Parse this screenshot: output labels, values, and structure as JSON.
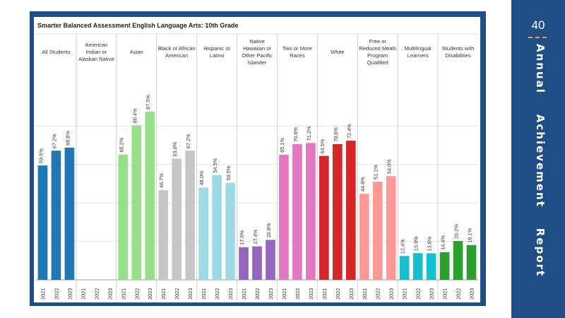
{
  "side_panel": {
    "page_number": "40",
    "report_title": "Annual    Achievement    Report"
  },
  "colors": {
    "frame": "#1f4e87",
    "all_students": "#1f77b4",
    "asian": "#98df8a",
    "black": "#c7c7c7",
    "hispanic": "#9edae5",
    "native_hawaiian": "#9467bd",
    "two_or_more": "#e377c2",
    "white": "#d62728",
    "free_reduced": "#ff9896",
    "multilingual": "#17becf",
    "disabilities": "#2ca02c"
  },
  "chart_data": {
    "type": "bar",
    "title": "Smarter Balanced Assessment English Language Arts:  10th Grade",
    "ylim": [
      0,
      100
    ],
    "grid": true,
    "years": [
      "2021",
      "2022",
      "2023"
    ],
    "groups": [
      {
        "name": "All Students",
        "lines": [
          "All Students"
        ],
        "color_key": "all_students",
        "values": [
          59.5,
          67.2,
          68.8
        ],
        "labels": [
          "59.5%",
          "67.2%",
          "68.8%"
        ]
      },
      {
        "name": "American Indian or Alaskan Native",
        "lines": [
          "American",
          "Indian or",
          "Alaskan Native"
        ],
        "color_key": "all_students",
        "values": [
          null,
          null,
          null
        ],
        "labels": [
          "",
          "",
          ""
        ]
      },
      {
        "name": "Asian",
        "lines": [
          "Asian"
        ],
        "color_key": "asian",
        "values": [
          65.2,
          80.4,
          87.5
        ],
        "labels": [
          "65.2%",
          "80.4%",
          "87.5%"
        ]
      },
      {
        "name": "Black or African American",
        "lines": [
          "Black or African",
          "American"
        ],
        "color_key": "black",
        "values": [
          46.7,
          63.0,
          67.2
        ],
        "labels": [
          "46.7%",
          "63.0%",
          "67.2%"
        ]
      },
      {
        "name": "Hispanic or Latino",
        "lines": [
          "Hispanic or",
          "Latino"
        ],
        "color_key": "hispanic",
        "values": [
          48.0,
          54.5,
          50.5
        ],
        "labels": [
          "48.0%",
          "54.5%",
          "50.5%"
        ]
      },
      {
        "name": "Native Hawaiian or Other Pacific Islander",
        "lines": [
          "Native",
          "Hawaiian or",
          "Other Pacific",
          "Islander"
        ],
        "color_key": "native_hawaiian",
        "values": [
          17.0,
          17.4,
          20.8
        ],
        "labels": [
          "17.0%",
          "17.4%",
          "20.8%"
        ]
      },
      {
        "name": "Two or More Races",
        "lines": [
          "Two or More",
          "Races"
        ],
        "color_key": "two_or_more",
        "values": [
          65.1,
          70.6,
          71.2
        ],
        "labels": [
          "65.1%",
          "70.6%",
          "71.2%"
        ]
      },
      {
        "name": "White",
        "lines": [
          "White"
        ],
        "color_key": "white",
        "values": [
          64.5,
          70.6,
          72.4
        ],
        "labels": [
          "64.5%",
          "70.6%",
          "72.4%"
        ]
      },
      {
        "name": "Free or Reduced Meals Program Qualified",
        "lines": [
          "Free or",
          "Reduced Meals",
          "Program",
          "Qualified"
        ],
        "color_key": "free_reduced",
        "values": [
          44.8,
          51.1,
          54.0
        ],
        "labels": [
          "44.8%",
          "51.1%",
          "54.0%"
        ]
      },
      {
        "name": "Multilingual Learners",
        "lines": [
          "Multilingual",
          "Learners"
        ],
        "color_key": "multilingual",
        "values": [
          12.4,
          13.9,
          13.8
        ],
        "labels": [
          "12.4%",
          "13.9%",
          "13.8%"
        ]
      },
      {
        "name": "Students with Disabilities",
        "lines": [
          "Students with",
          "Disabilities"
        ],
        "color_key": "disabilities",
        "values": [
          14.4,
          20.2,
          18.1
        ],
        "labels": [
          "14.4%",
          "20.2%",
          "18.1%"
        ]
      }
    ]
  }
}
